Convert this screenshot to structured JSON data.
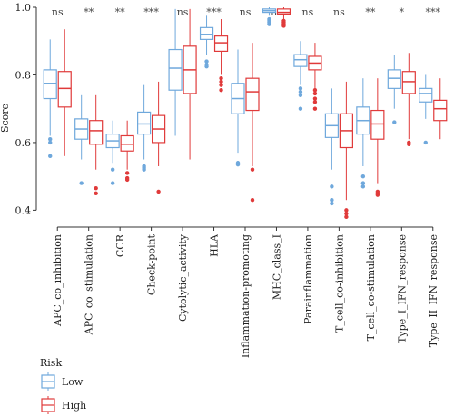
{
  "chart_data": {
    "type": "boxplot",
    "ylabel": "Score",
    "ylim": [
      0.35,
      1.0
    ],
    "yticks": [
      "0.4",
      "0.6",
      "0.8",
      "1.0"
    ],
    "legend": {
      "title": "Risk",
      "position": "bottom-left"
    },
    "categories": [
      "APC_co_inhibition",
      "APC_co_stimulation",
      "CCR",
      "Check-point",
      "Cytolytic_activity",
      "HLA",
      "Inflammation-promoting",
      "MHC_class_I",
      "Parainflammation",
      "T_cell_co-inhibition",
      "T_cell_co-stimulation",
      "Type_I_IFN_response",
      "Type_II_IFN_response"
    ],
    "significance": [
      "ns",
      "**",
      "**",
      "***",
      "ns",
      "***",
      "ns",
      "ns",
      "ns",
      "ns",
      "**",
      "*",
      "***"
    ],
    "series": [
      {
        "name": "Low",
        "color": "#6fa8dc",
        "boxes": [
          {
            "min": 0.62,
            "q1": 0.73,
            "median": 0.775,
            "q3": 0.815,
            "max": 0.905,
            "outliers": [
              0.6,
              0.61,
              0.56
            ]
          },
          {
            "min": 0.55,
            "q1": 0.61,
            "median": 0.64,
            "q3": 0.67,
            "max": 0.74,
            "outliers": [
              0.48
            ]
          },
          {
            "min": 0.54,
            "q1": 0.585,
            "median": 0.605,
            "q3": 0.625,
            "max": 0.665,
            "outliers": [
              0.52,
              0.48
            ]
          },
          {
            "min": 0.55,
            "q1": 0.625,
            "median": 0.655,
            "q3": 0.69,
            "max": 0.77,
            "outliers": [
              0.53,
              0.525,
              0.52
            ]
          },
          {
            "min": 0.62,
            "q1": 0.755,
            "median": 0.82,
            "q3": 0.875,
            "max": 0.995,
            "outliers": []
          },
          {
            "min": 0.86,
            "q1": 0.905,
            "median": 0.92,
            "q3": 0.94,
            "max": 0.975,
            "outliers": [
              0.84,
              0.83,
              0.825
            ]
          },
          {
            "min": 0.57,
            "q1": 0.685,
            "median": 0.73,
            "q3": 0.775,
            "max": 0.875,
            "outliers": [
              0.54,
              0.535
            ]
          },
          {
            "min": 0.975,
            "q1": 0.985,
            "median": 0.99,
            "q3": 0.995,
            "max": 1.0,
            "outliers": [
              0.965,
              0.96,
              0.955,
              0.95
            ]
          },
          {
            "min": 0.77,
            "q1": 0.825,
            "median": 0.845,
            "q3": 0.86,
            "max": 0.9,
            "outliers": [
              0.76,
              0.75,
              0.74,
              0.7
            ]
          },
          {
            "min": 0.52,
            "q1": 0.615,
            "median": 0.65,
            "q3": 0.685,
            "max": 0.76,
            "outliers": [
              0.47,
              0.43,
              0.42
            ]
          },
          {
            "min": 0.53,
            "q1": 0.625,
            "median": 0.665,
            "q3": 0.705,
            "max": 0.79,
            "outliers": [
              0.5,
              0.48,
              0.47
            ]
          },
          {
            "min": 0.7,
            "q1": 0.76,
            "median": 0.79,
            "q3": 0.815,
            "max": 0.86,
            "outliers": [
              0.66
            ]
          },
          {
            "min": 0.67,
            "q1": 0.72,
            "median": 0.745,
            "q3": 0.76,
            "max": 0.8,
            "outliers": [
              0.6
            ]
          }
        ]
      },
      {
        "name": "High",
        "color": "#e03a3a",
        "boxes": [
          {
            "min": 0.56,
            "q1": 0.705,
            "median": 0.76,
            "q3": 0.81,
            "max": 0.935,
            "outliers": []
          },
          {
            "min": 0.52,
            "q1": 0.595,
            "median": 0.635,
            "q3": 0.665,
            "max": 0.74,
            "outliers": [
              0.465,
              0.45
            ]
          },
          {
            "min": 0.52,
            "q1": 0.575,
            "median": 0.595,
            "q3": 0.62,
            "max": 0.665,
            "outliers": [
              0.51,
              0.495,
              0.49
            ]
          },
          {
            "min": 0.53,
            "q1": 0.6,
            "median": 0.64,
            "q3": 0.68,
            "max": 0.78,
            "outliers": [
              0.455
            ]
          },
          {
            "min": 0.55,
            "q1": 0.745,
            "median": 0.815,
            "q3": 0.885,
            "max": 0.995,
            "outliers": []
          },
          {
            "min": 0.8,
            "q1": 0.87,
            "median": 0.895,
            "q3": 0.915,
            "max": 0.965,
            "outliers": [
              0.79,
              0.78,
              0.77,
              0.755
            ]
          },
          {
            "min": 0.53,
            "q1": 0.695,
            "median": 0.75,
            "q3": 0.79,
            "max": 0.895,
            "outliers": [
              0.52,
              0.43
            ]
          },
          {
            "min": 0.965,
            "q1": 0.98,
            "median": 0.985,
            "q3": 0.995,
            "max": 1.0,
            "outliers": [
              0.96,
              0.955,
              0.95,
              0.945
            ]
          },
          {
            "min": 0.76,
            "q1": 0.815,
            "median": 0.835,
            "q3": 0.855,
            "max": 0.895,
            "outliers": [
              0.755,
              0.745,
              0.73,
              0.72,
              0.7
            ]
          },
          {
            "min": 0.43,
            "q1": 0.585,
            "median": 0.635,
            "q3": 0.685,
            "max": 0.78,
            "outliers": [
              0.4,
              0.39,
              0.38
            ]
          },
          {
            "min": 0.48,
            "q1": 0.61,
            "median": 0.655,
            "q3": 0.695,
            "max": 0.79,
            "outliers": [
              0.455,
              0.45,
              0.445
            ]
          },
          {
            "min": 0.61,
            "q1": 0.745,
            "median": 0.78,
            "q3": 0.81,
            "max": 0.865,
            "outliers": [
              0.6,
              0.595
            ]
          },
          {
            "min": 0.61,
            "q1": 0.665,
            "median": 0.7,
            "q3": 0.725,
            "max": 0.79,
            "outliers": []
          }
        ]
      }
    ]
  }
}
